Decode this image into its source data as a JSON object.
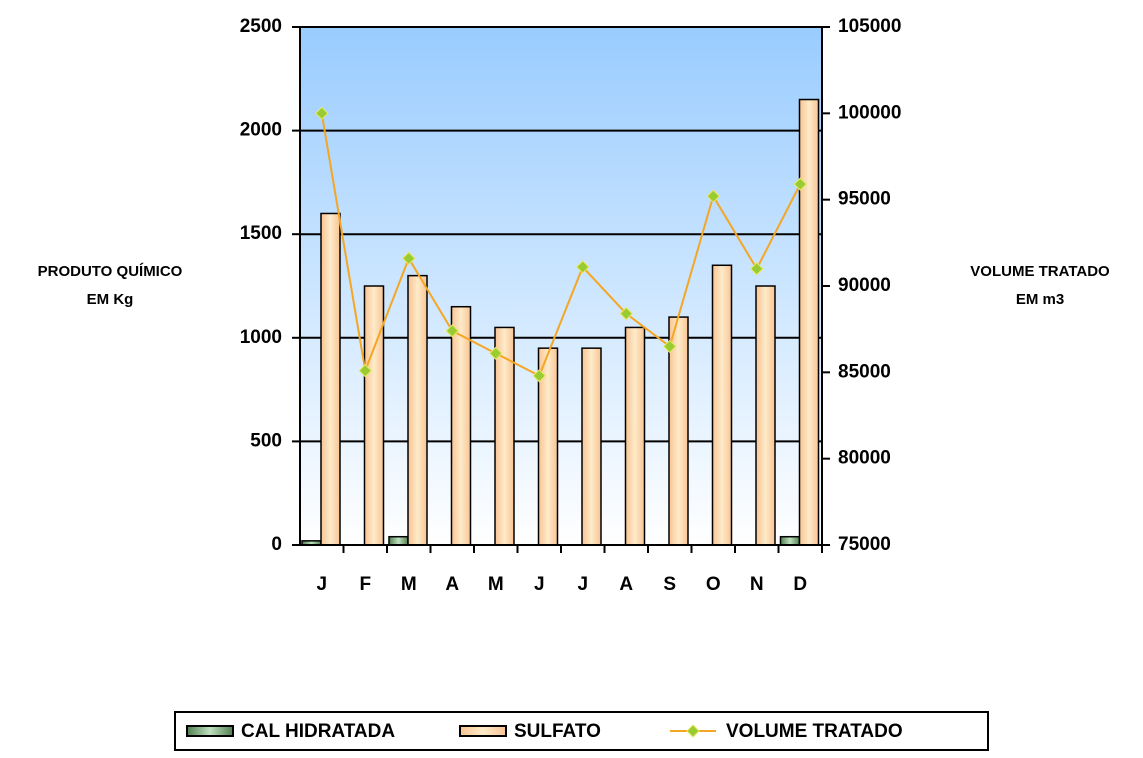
{
  "chart_data": {
    "type": "bar",
    "categories": [
      "J",
      "F",
      "M",
      "A",
      "M",
      "J",
      "J",
      "A",
      "S",
      "O",
      "N",
      "D"
    ],
    "series": [
      {
        "name": "CAL HIDRATADA",
        "color": "#6a9a6a",
        "values": [
          20,
          0,
          40,
          0,
          0,
          0,
          0,
          0,
          0,
          0,
          0,
          40
        ]
      },
      {
        "name": "SULFATO",
        "color": "#fbd3a5",
        "values": [
          1600,
          1250,
          1300,
          1150,
          1050,
          950,
          950,
          1050,
          1100,
          1350,
          1250,
          2150
        ]
      },
      {
        "name": "VOLUME TRATADO",
        "type": "line",
        "axis": "y2",
        "color": "#f5a623",
        "marker_color": "#99cc33",
        "values": [
          100000,
          85100,
          91600,
          87400,
          86100,
          84800,
          91100,
          88400,
          86500,
          95200,
          91000,
          95900
        ]
      }
    ],
    "y_label": [
      "PRODUTO QUÍMICO",
      "EM Kg"
    ],
    "y2_label": [
      "VOLUME TRATADO",
      "EM m3"
    ],
    "ylim": [
      0,
      2500
    ],
    "yticks": [
      0,
      500,
      1000,
      1500,
      2000,
      2500
    ],
    "y2lim": [
      75000,
      105000
    ],
    "y2ticks": [
      75000,
      80000,
      85000,
      90000,
      95000,
      100000,
      105000
    ],
    "grid": true,
    "legend": "bottom"
  }
}
